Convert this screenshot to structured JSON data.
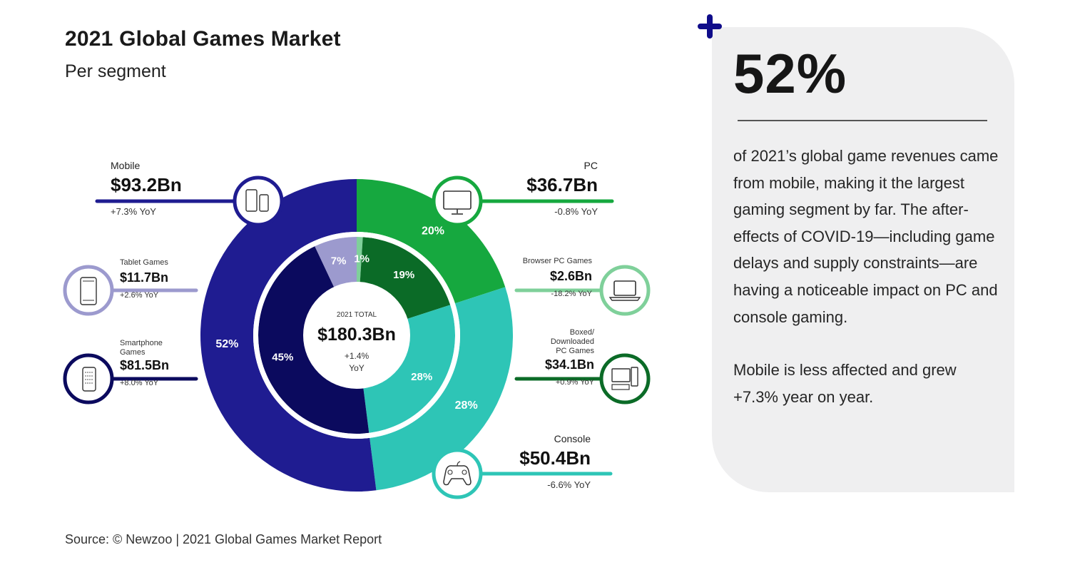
{
  "header": {
    "title": "2021 Global Games Market",
    "subtitle": "Per segment"
  },
  "source": "Source: © Newzoo | 2021 Global Games Market Report",
  "callout": {
    "big_stat": "52%",
    "paragraph1": "of 2021’s global game revenues came from mobile, making it the largest gaming segment by far. The after-effects of COVID-19—including game delays and supply constraints—are having a noticeable impact on PC and console gaming.",
    "paragraph2": "Mobile is less affected and grew +7.3% year on year.",
    "plus_color": "#0f0c8a"
  },
  "chart_data": {
    "type": "pie",
    "subtype": "nested-donut",
    "title": "2021 Global Games Market",
    "subtitle": "Per segment",
    "center": {
      "label": "2021 TOTAL",
      "value": "$180.3Bn",
      "yoy": "+1.4%",
      "yoy_suffix": "YoY"
    },
    "outer_ring": [
      {
        "name": "PC",
        "revenue": "$36.7Bn",
        "yoy": "-0.8% YoY",
        "share": 20,
        "share_label": "20%",
        "color": "#16a83f",
        "icon": "desktop-monitor-icon"
      },
      {
        "name": "Console",
        "revenue": "$50.4Bn",
        "yoy": "-6.6% YoY",
        "share": 28,
        "share_label": "28%",
        "color": "#2ec5b6",
        "icon": "gamepad-icon"
      },
      {
        "name": "Mobile",
        "revenue": "$93.2Bn",
        "yoy": "+7.3% YoY",
        "share": 52,
        "share_label": "52%",
        "color": "#1f1c91",
        "icon": "mobile-devices-icon"
      }
    ],
    "inner_ring": [
      {
        "name": "Browser PC Games",
        "revenue": "$2.6Bn",
        "yoy": "-18.2% YoY",
        "share": 1,
        "share_label": "1%",
        "color": "#7fd09a",
        "icon": "laptop-icon"
      },
      {
        "name": "Boxed/ Downloaded PC Games",
        "revenue": "$34.1Bn",
        "yoy": "+0.9% YoY",
        "share": 19,
        "share_label": "19%",
        "color": "#0b6b27",
        "icon": "desktop-tower-icon"
      },
      {
        "name": "Console",
        "revenue": "$50.4Bn",
        "yoy": "-6.6% YoY",
        "share": 28,
        "share_label": "28%",
        "color": "#2ec5b6",
        "icon": ""
      },
      {
        "name": "Smartphone Games",
        "revenue": "$81.5Bn",
        "yoy": "+8.0% YoY",
        "share": 45,
        "share_label": "45%",
        "color": "#0b0a5e",
        "icon": "smartphone-icon"
      },
      {
        "name": "Tablet Games",
        "revenue": "$11.7Bn",
        "yoy": "+2.6% YoY",
        "share": 7,
        "share_label": "7%",
        "color": "#9c9ace",
        "icon": "tablet-icon"
      }
    ]
  },
  "labels": {
    "mobile": {
      "name": "Mobile",
      "value": "$93.2Bn",
      "yoy": "+7.3% YoY"
    },
    "tablet": {
      "name": "Tablet Games",
      "value": "$11.7Bn",
      "yoy": "+2.6% YoY"
    },
    "smartphone": {
      "name_line1": "Smartphone",
      "name_line2": "Games",
      "value": "$81.5Bn",
      "yoy": "+8.0% YoY"
    },
    "pc": {
      "name": "PC",
      "value": "$36.7Bn",
      "yoy": "-0.8% YoY"
    },
    "browser": {
      "name": "Browser PC Games",
      "value": "$2.6Bn",
      "yoy": "-18.2% YoY"
    },
    "boxed": {
      "name_line1": "Boxed/",
      "name_line2": "Downloaded",
      "name_line3": "PC Games",
      "value": "$34.1Bn",
      "yoy": "+0.9% YoY"
    },
    "console": {
      "name": "Console",
      "value": "$50.4Bn",
      "yoy": "-6.6% YoY"
    }
  }
}
